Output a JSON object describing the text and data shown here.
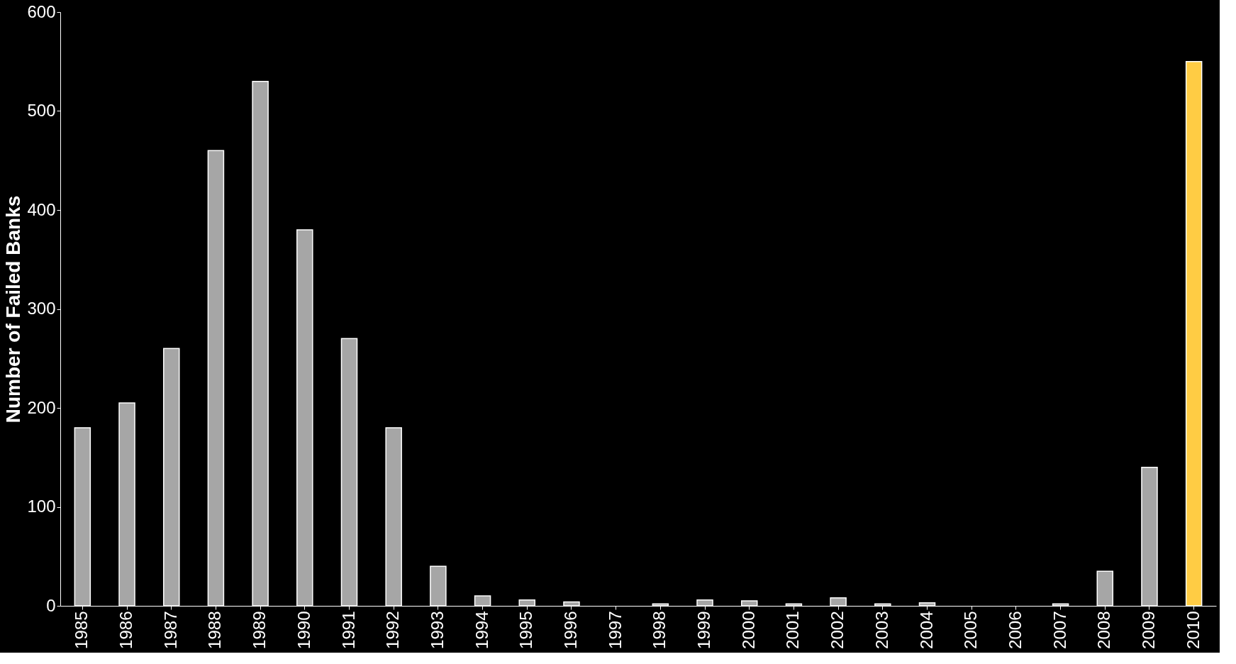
{
  "chart_data": {
    "type": "bar",
    "ylabel": "Number of Failed Banks",
    "categories": [
      "1985",
      "1986",
      "1987",
      "1988",
      "1989",
      "1990",
      "1991",
      "1992",
      "1993",
      "1994",
      "1995",
      "1996",
      "1997",
      "1998",
      "1999",
      "2000",
      "2001",
      "2002",
      "2003",
      "2004",
      "2005",
      "2006",
      "2007",
      "2008",
      "2009",
      "2010"
    ],
    "values": [
      180,
      205,
      260,
      460,
      530,
      380,
      270,
      180,
      40,
      10,
      6,
      4,
      0,
      2,
      6,
      5,
      2,
      8,
      2,
      3,
      0,
      0,
      2,
      35,
      140,
      550
    ],
    "colors": [
      "#a6a6a6",
      "#a6a6a6",
      "#a6a6a6",
      "#a6a6a6",
      "#a6a6a6",
      "#a6a6a6",
      "#a6a6a6",
      "#a6a6a6",
      "#a6a6a6",
      "#a6a6a6",
      "#a6a6a6",
      "#a6a6a6",
      "#a6a6a6",
      "#a6a6a6",
      "#a6a6a6",
      "#a6a6a6",
      "#a6a6a6",
      "#a6a6a6",
      "#a6a6a6",
      "#a6a6a6",
      "#a6a6a6",
      "#a6a6a6",
      "#a6a6a6",
      "#a6a6a6",
      "#a6a6a6",
      "#ffcc44"
    ],
    "ylim": [
      0,
      600
    ],
    "yticks": [
      0,
      100,
      200,
      300,
      400,
      500,
      600
    ],
    "grid": false
  }
}
